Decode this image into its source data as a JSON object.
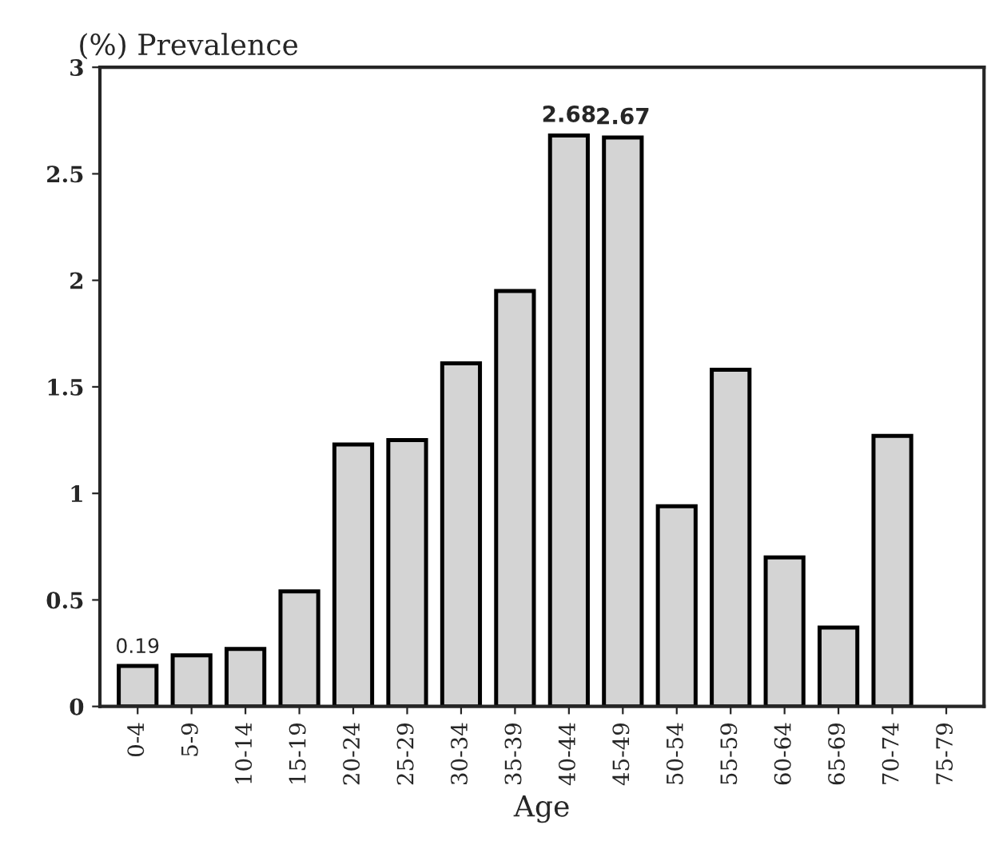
{
  "chart_data": {
    "type": "bar",
    "ylabel": "(%) Prevalence",
    "xlabel": "Age",
    "categories": [
      "0-4",
      "5-9",
      "10-14",
      "15-19",
      "20-24",
      "25-29",
      "30-34",
      "35-39",
      "40-44",
      "45-49",
      "50-54",
      "55-59",
      "60-64",
      "65-69",
      "70-74",
      "75-79"
    ],
    "values": [
      0.19,
      0.24,
      0.27,
      0.54,
      1.23,
      1.25,
      1.61,
      1.95,
      2.68,
      2.67,
      0.94,
      1.58,
      0.7,
      0.37,
      1.27,
      null
    ],
    "value_labels": [
      "0.19",
      null,
      null,
      null,
      null,
      null,
      null,
      null,
      "2.68",
      "2.67",
      null,
      null,
      null,
      null,
      null,
      null
    ],
    "color": "#d4d4d4",
    "ylim": [
      0,
      3
    ],
    "yticks": [
      0,
      0.5,
      1,
      1.5,
      2,
      2.5,
      3
    ],
    "grid": false
  }
}
